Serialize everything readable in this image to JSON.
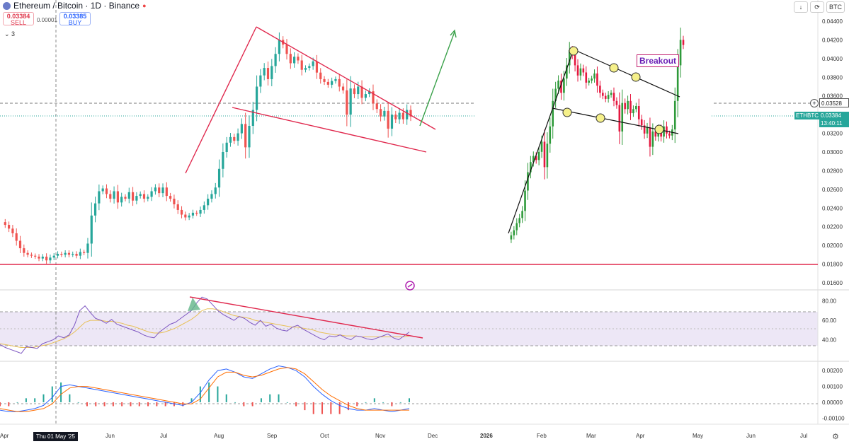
{
  "header": {
    "title": "Ethereum / Bitcoin · 1D · Binance",
    "sell_price": "0.03384",
    "sell_label": "SELL",
    "spread": "0.00001",
    "buy_price": "0.03385",
    "buy_label": "BUY",
    "indicator_count": "3"
  },
  "toolbar": {
    "down_icon": "arrow-down-icon",
    "sync_icon": "sync-icon",
    "currency": "BTC"
  },
  "price_tags": {
    "line": "0.03528",
    "symbol": "ETHBTC",
    "last": "0.03384",
    "countdown": "13:40:11"
  },
  "inset": {
    "label": "Breakout"
  },
  "date_tag": "Thu 01 May '25",
  "colors": {
    "up": "#26a69a",
    "down": "#ef5350",
    "trend": "#e0284d",
    "rsi": "#7e57c2"
  },
  "chart_data": [
    {
      "type": "line",
      "name": "main-price",
      "yticks": [
        "0.04400",
        "0.04200",
        "0.04000",
        "0.03800",
        "0.03600",
        "0.03400",
        "0.03200",
        "0.03000",
        "0.02800",
        "0.02600",
        "0.02400",
        "0.02200",
        "0.02000",
        "0.01800",
        "0.01600"
      ],
      "ylim": [
        0.016,
        0.044
      ],
      "xticks": [
        "Apr",
        "Jun",
        "Jul",
        "Aug",
        "Sep",
        "Oct",
        "Nov",
        "Dec",
        "2026",
        "Feb",
        "Mar",
        "Apr",
        "May",
        "Jun",
        "Jul"
      ],
      "series": [
        {
          "values": [
            0.0225,
            0.0222,
            0.0218,
            0.0213,
            0.0205,
            0.0197,
            0.0192,
            0.019,
            0.0189,
            0.0188,
            0.0186,
            0.0188,
            0.0184,
            0.0187,
            0.0189,
            0.0191,
            0.019,
            0.0192,
            0.019,
            0.0191,
            0.0189,
            0.0193,
            0.0192,
            0.0202,
            0.0232,
            0.0245,
            0.0258,
            0.0261,
            0.0255,
            0.025,
            0.0258,
            0.0246,
            0.0252,
            0.025,
            0.0257,
            0.0248,
            0.0253,
            0.0255,
            0.025,
            0.0252,
            0.0258,
            0.0262,
            0.0256,
            0.0262,
            0.0253,
            0.025,
            0.0244,
            0.0238,
            0.0233,
            0.023,
            0.0232,
            0.0235,
            0.0234,
            0.0238,
            0.0243,
            0.025,
            0.0255,
            0.0262,
            0.0282,
            0.03,
            0.031,
            0.0316,
            0.0312,
            0.032,
            0.033,
            0.0305,
            0.0328,
            0.0345,
            0.037,
            0.0382,
            0.039,
            0.0378,
            0.0392,
            0.0405,
            0.042,
            0.0415,
            0.0405,
            0.0395,
            0.0402,
            0.0398,
            0.0388,
            0.039,
            0.0392,
            0.0397,
            0.0385,
            0.0378,
            0.0375,
            0.0372,
            0.0376,
            0.0378,
            0.037,
            0.0366,
            0.034,
            0.0368,
            0.0362,
            0.037,
            0.0358,
            0.0362,
            0.0365,
            0.0352,
            0.0346,
            0.0338,
            0.0344,
            0.0325,
            0.034,
            0.0335,
            0.0342,
            0.0335,
            0.0345,
            0.0338
          ]
        }
      ]
    },
    {
      "type": "line",
      "name": "rsi",
      "yticks": [
        "80.00",
        "60.00",
        "40.00"
      ],
      "ylim": [
        20,
        90
      ],
      "series": [
        {
          "values": [
            35,
            32,
            30,
            28,
            26,
            33,
            32,
            31,
            36,
            38,
            40,
            44,
            42,
            45,
            55,
            70,
            75,
            68,
            62,
            60,
            57,
            61,
            56,
            54,
            52,
            50,
            48,
            45,
            43,
            42,
            48,
            52,
            56,
            58,
            62,
            66,
            70,
            78,
            84,
            82,
            76,
            70,
            66,
            63,
            60,
            64,
            62,
            58,
            55,
            60,
            54,
            56,
            52,
            50,
            49,
            53,
            55,
            51,
            48,
            45,
            42,
            40,
            44,
            43,
            45,
            42,
            40,
            44,
            43,
            41,
            40,
            42,
            44,
            46,
            42,
            40,
            44,
            48
          ]
        },
        {
          "values": [
            36,
            35,
            34,
            33,
            32,
            32,
            32,
            33,
            34,
            35,
            37,
            39,
            41,
            44,
            48,
            53,
            58,
            60,
            60,
            60,
            59,
            59,
            58,
            57,
            55,
            54,
            52,
            50,
            48,
            47,
            47,
            48,
            50,
            52,
            55,
            58,
            61,
            65,
            70,
            72,
            72,
            71,
            69,
            67,
            65,
            64,
            63,
            62,
            60,
            59,
            58,
            57,
            56,
            55,
            54,
            53,
            53,
            52,
            51,
            50,
            48,
            47,
            46,
            45,
            45,
            44,
            44,
            44,
            43,
            43,
            43,
            43,
            43,
            43,
            43,
            43,
            43,
            44
          ]
        }
      ]
    },
    {
      "type": "line",
      "name": "macd",
      "yticks": [
        "0.00200",
        "0.00100",
        "0.00000",
        "-0.00100"
      ],
      "ylim": [
        -0.0013,
        0.0025
      ],
      "series": [
        {
          "values": [
            -0.0005,
            -0.0006,
            -0.0006,
            -0.0005,
            -0.0004,
            -0.0002,
            0.0003,
            0.001,
            0.0011,
            0.001,
            0.0009,
            0.0008,
            0.0007,
            0.0006,
            0.0005,
            0.0004,
            0.0003,
            0.0002,
            0.0001,
            0.0,
            -0.0001,
            -0.0002,
            0.0,
            0.0006,
            0.0014,
            0.002,
            0.0021,
            0.0019,
            0.0016,
            0.0015,
            0.0018,
            0.0021,
            0.0023,
            0.0022,
            0.002,
            0.0016,
            0.001,
            0.0005,
            0.0001,
            -0.0002,
            -0.0004,
            -0.0005,
            -0.0005,
            -0.0004,
            -0.0005,
            -0.0006,
            -0.0005,
            -0.0004
          ]
        },
        {
          "values": [
            -0.0004,
            -0.0005,
            -0.0006,
            -0.0006,
            -0.0005,
            -0.0004,
            -0.0001,
            0.0005,
            0.0009,
            0.001,
            0.001,
            0.0009,
            0.0008,
            0.0007,
            0.0006,
            0.0005,
            0.0004,
            0.0003,
            0.0002,
            0.0001,
            0.0,
            -0.0001,
            -0.0001,
            0.0002,
            0.0009,
            0.0016,
            0.0019,
            0.0019,
            0.0017,
            0.0016,
            0.0017,
            0.0019,
            0.0021,
            0.0022,
            0.0021,
            0.0018,
            0.0013,
            0.0008,
            0.0004,
            0.0001,
            -0.0002,
            -0.0004,
            -0.0005,
            -0.0005,
            -0.0005,
            -0.0005,
            -0.0005,
            -0.0005
          ]
        }
      ]
    }
  ]
}
